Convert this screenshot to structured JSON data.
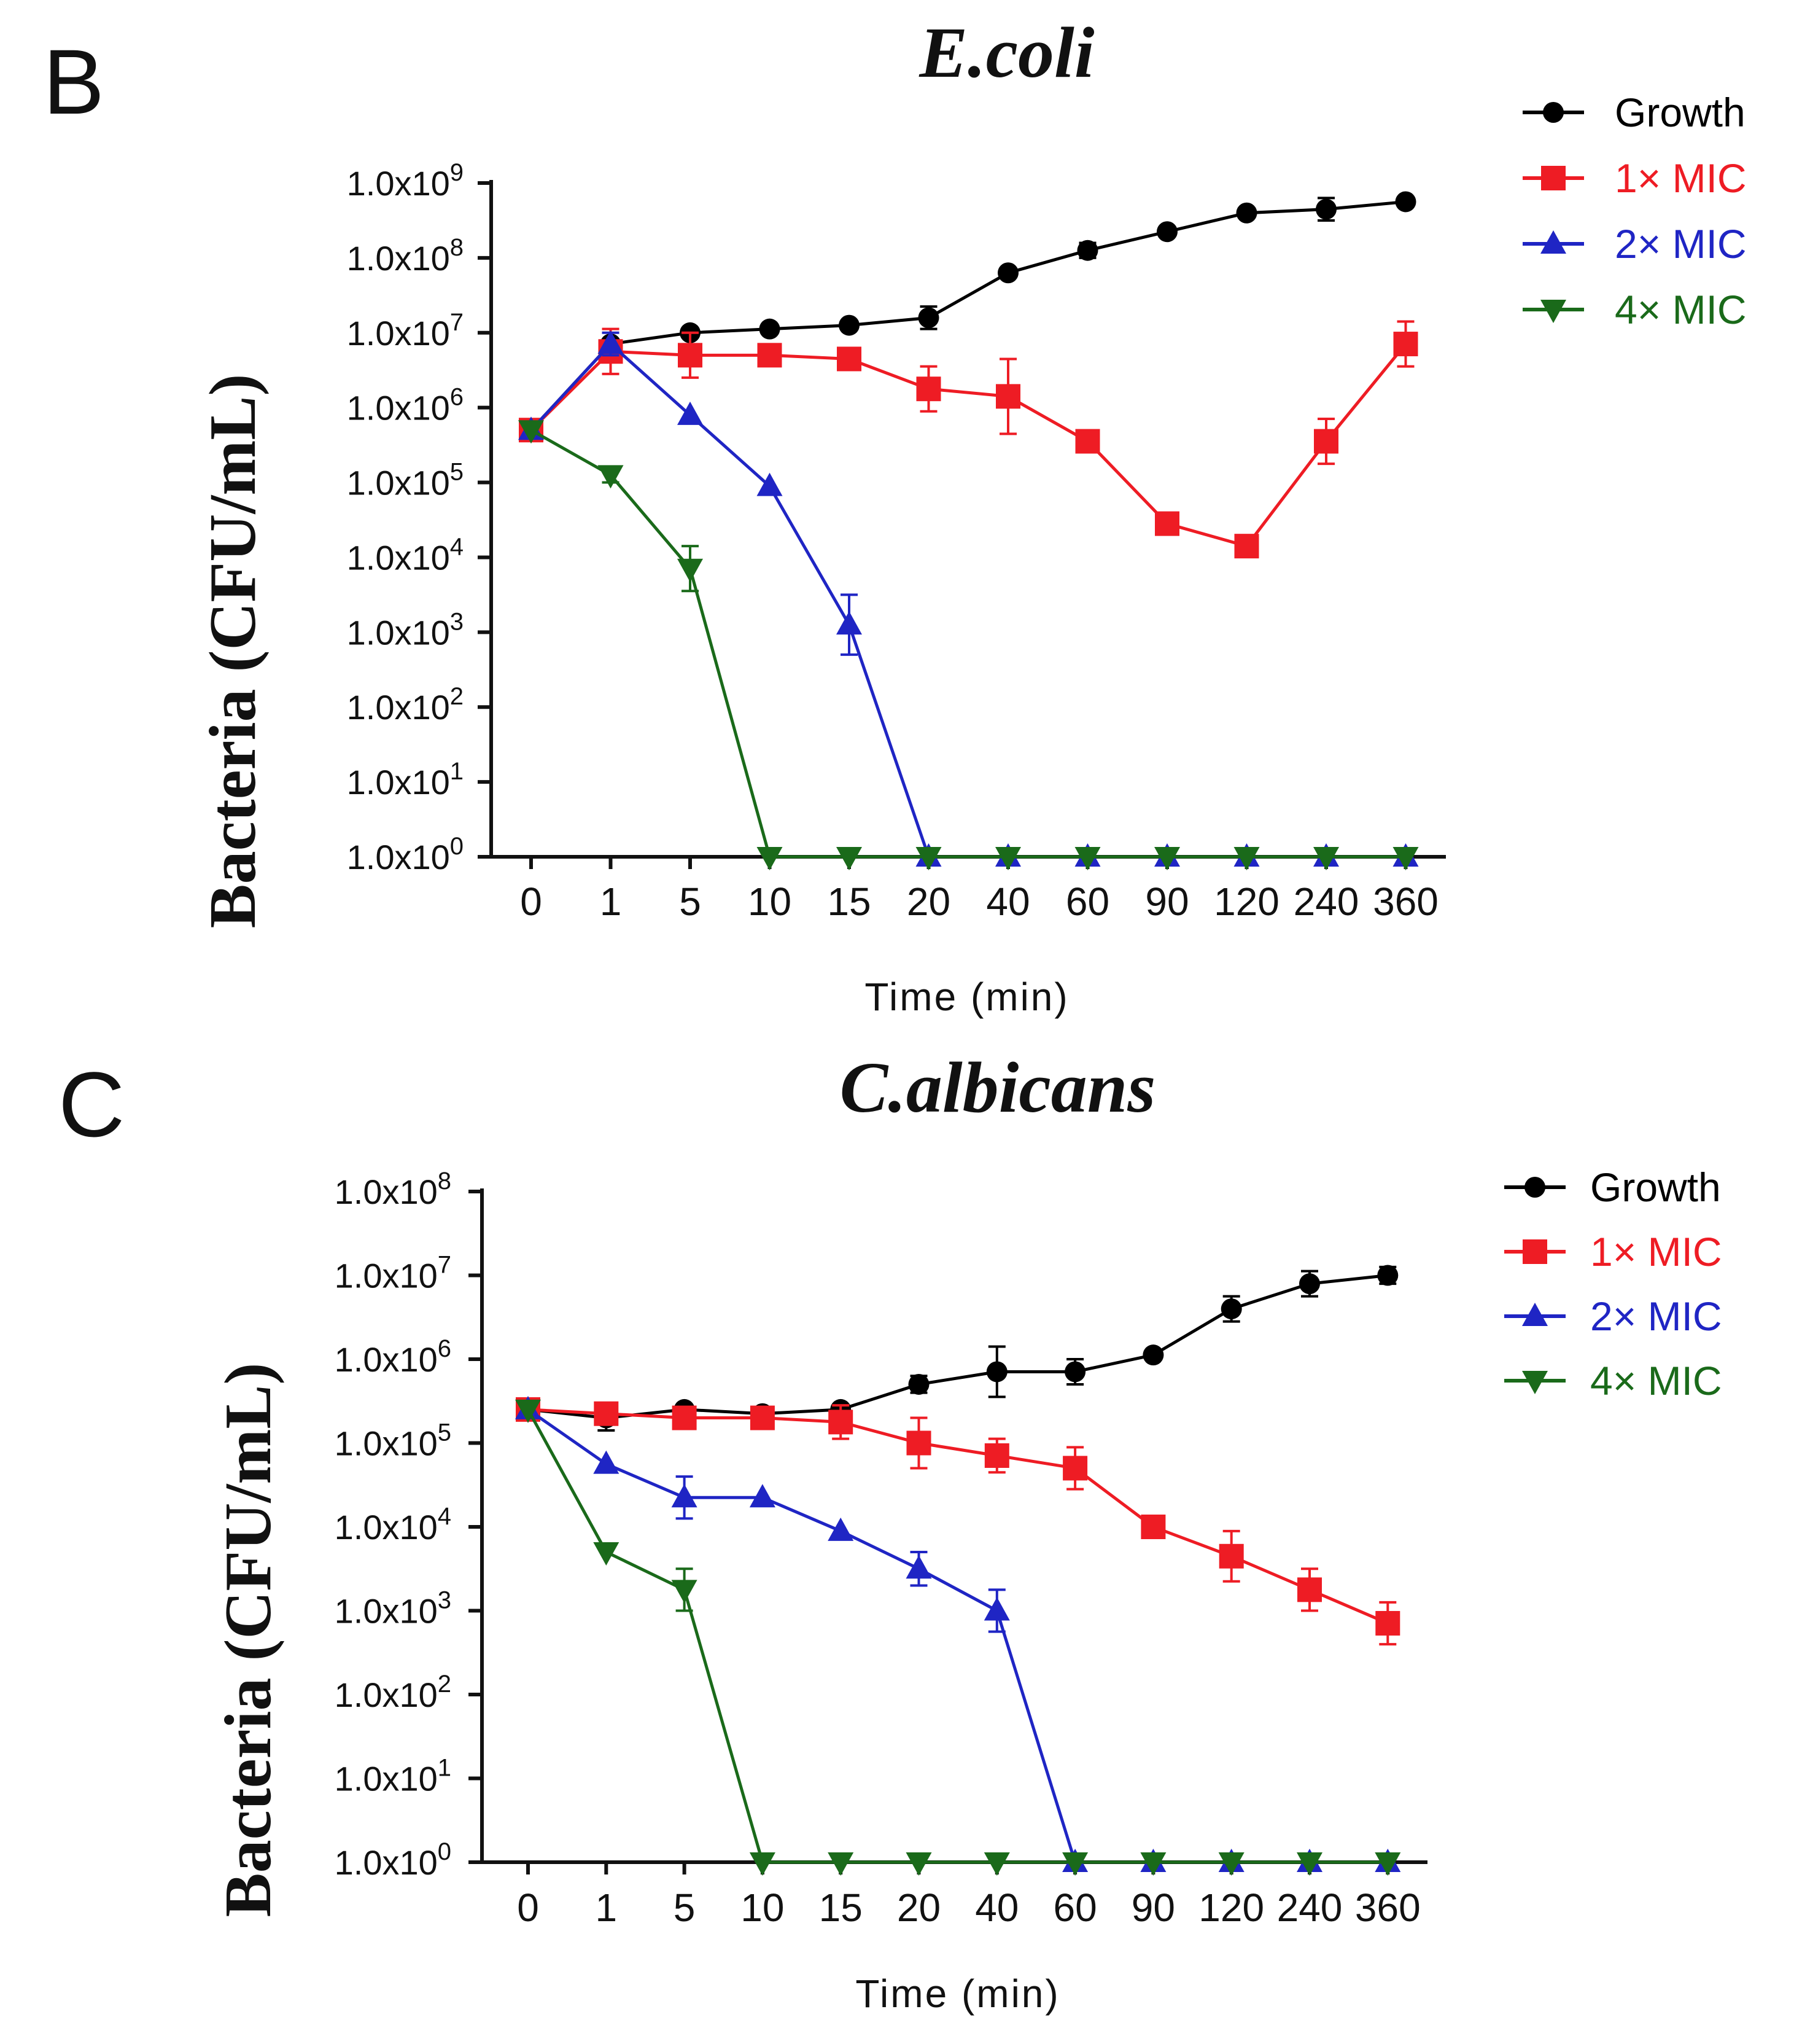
{
  "chart_data": [
    {
      "panel": "B",
      "type": "line",
      "title": "E.coli",
      "xlabel": "Time (min)",
      "ylabel": "Bacteria  (CFU/mL)",
      "yscale": "log10",
      "ylim_exponent": [
        0,
        9
      ],
      "yticks": [
        "1.0x10",
        "1.0x10",
        "1.0x10",
        "1.0x10",
        "1.0x10",
        "1.0x10",
        "1.0x10",
        "1.0x10",
        "1.0x10",
        "1.0x10"
      ],
      "ytick_exponents": [
        "0",
        "1",
        "2",
        "3",
        "4",
        "5",
        "6",
        "7",
        "8",
        "9"
      ],
      "categories": [
        "0",
        "1",
        "5",
        "10",
        "15",
        "20",
        "40",
        "60",
        "90",
        "120",
        "240",
        "360"
      ],
      "legend_position": "top-right",
      "series": [
        {
          "name": "Growth",
          "color": "#000000",
          "marker": "circle",
          "values": [
            5.7,
            6.85,
            7.0,
            7.05,
            7.1,
            7.2,
            7.8,
            8.1,
            8.35,
            8.6,
            8.65,
            8.75
          ],
          "errors": [
            0.05,
            0.05,
            0.05,
            0.05,
            0.05,
            0.15,
            0.05,
            0.1,
            0.05,
            0.05,
            0.15,
            0.05
          ]
        },
        {
          "name": "1× MIC",
          "color": "#ee1c24",
          "marker": "square",
          "values": [
            5.7,
            6.75,
            6.7,
            6.7,
            6.65,
            6.25,
            6.15,
            5.55,
            4.45,
            4.15,
            5.55,
            6.85
          ],
          "errors": [
            0.05,
            0.3,
            0.3,
            0.05,
            0.05,
            0.3,
            0.5,
            0.1,
            0.05,
            0.05,
            0.3,
            0.3
          ]
        },
        {
          "name": "2× MIC",
          "color": "#1f25c4",
          "marker": "triangle-up",
          "values": [
            5.7,
            6.85,
            5.9,
            4.95,
            3.1,
            0,
            0,
            0,
            0,
            0,
            0,
            0
          ],
          "errors": [
            0.05,
            0.15,
            0.05,
            0.05,
            0.4,
            0,
            0,
            0,
            0,
            0,
            0,
            0
          ]
        },
        {
          "name": "4× MIC",
          "color": "#1a6a1a",
          "marker": "triangle-down",
          "values": [
            5.7,
            5.1,
            3.85,
            0,
            0,
            0,
            0,
            0,
            0,
            0,
            0,
            0
          ],
          "errors": [
            0.05,
            0.1,
            0.3,
            0,
            0,
            0,
            0,
            0,
            0,
            0,
            0,
            0
          ]
        }
      ]
    },
    {
      "panel": "C",
      "type": "line",
      "title": "C.albicans",
      "xlabel": "Time (min)",
      "ylabel": "Bacteria  (CFU/mL)",
      "yscale": "log10",
      "ylim_exponent": [
        0,
        8
      ],
      "yticks": [
        "1.0x10",
        "1.0x10",
        "1.0x10",
        "1.0x10",
        "1.0x10",
        "1.0x10",
        "1.0x10",
        "1.0x10",
        "1.0x10"
      ],
      "ytick_exponents": [
        "0",
        "1",
        "2",
        "3",
        "4",
        "5",
        "6",
        "7",
        "8"
      ],
      "categories": [
        "0",
        "1",
        "5",
        "10",
        "15",
        "20",
        "40",
        "60",
        "90",
        "120",
        "240",
        "360"
      ],
      "legend_position": "top-right",
      "series": [
        {
          "name": "Growth",
          "color": "#000000",
          "marker": "circle",
          "values": [
            5.4,
            5.3,
            5.4,
            5.35,
            5.4,
            5.7,
            5.85,
            5.85,
            6.05,
            6.6,
            6.9,
            7.0
          ],
          "errors": [
            0.05,
            0.15,
            0.05,
            0.05,
            0.05,
            0.1,
            0.3,
            0.15,
            0.05,
            0.15,
            0.15,
            0.1
          ]
        },
        {
          "name": "1× MIC",
          "color": "#ee1c24",
          "marker": "square",
          "values": [
            5.4,
            5.35,
            5.3,
            5.3,
            5.25,
            5.0,
            4.85,
            4.7,
            4.0,
            3.65,
            3.25,
            2.85
          ],
          "errors": [
            0.05,
            0.05,
            0.05,
            0.05,
            0.2,
            0.3,
            0.2,
            0.25,
            0.05,
            0.3,
            0.25,
            0.25
          ]
        },
        {
          "name": "2× MIC",
          "color": "#1f25c4",
          "marker": "triangle-up",
          "values": [
            5.4,
            4.75,
            4.35,
            4.35,
            3.95,
            3.5,
            3.0,
            0,
            0,
            0,
            0,
            0
          ],
          "errors": [
            0.05,
            0.05,
            0.25,
            0.05,
            0.05,
            0.2,
            0.25,
            0,
            0,
            0,
            0,
            0
          ]
        },
        {
          "name": "4× MIC",
          "color": "#1a6a1a",
          "marker": "triangle-down",
          "values": [
            5.4,
            3.7,
            3.25,
            0,
            0,
            0,
            0,
            0,
            0,
            0,
            0,
            0
          ],
          "errors": [
            0.05,
            0.05,
            0.25,
            0,
            0,
            0,
            0,
            0,
            0,
            0,
            0,
            0
          ]
        }
      ]
    }
  ]
}
